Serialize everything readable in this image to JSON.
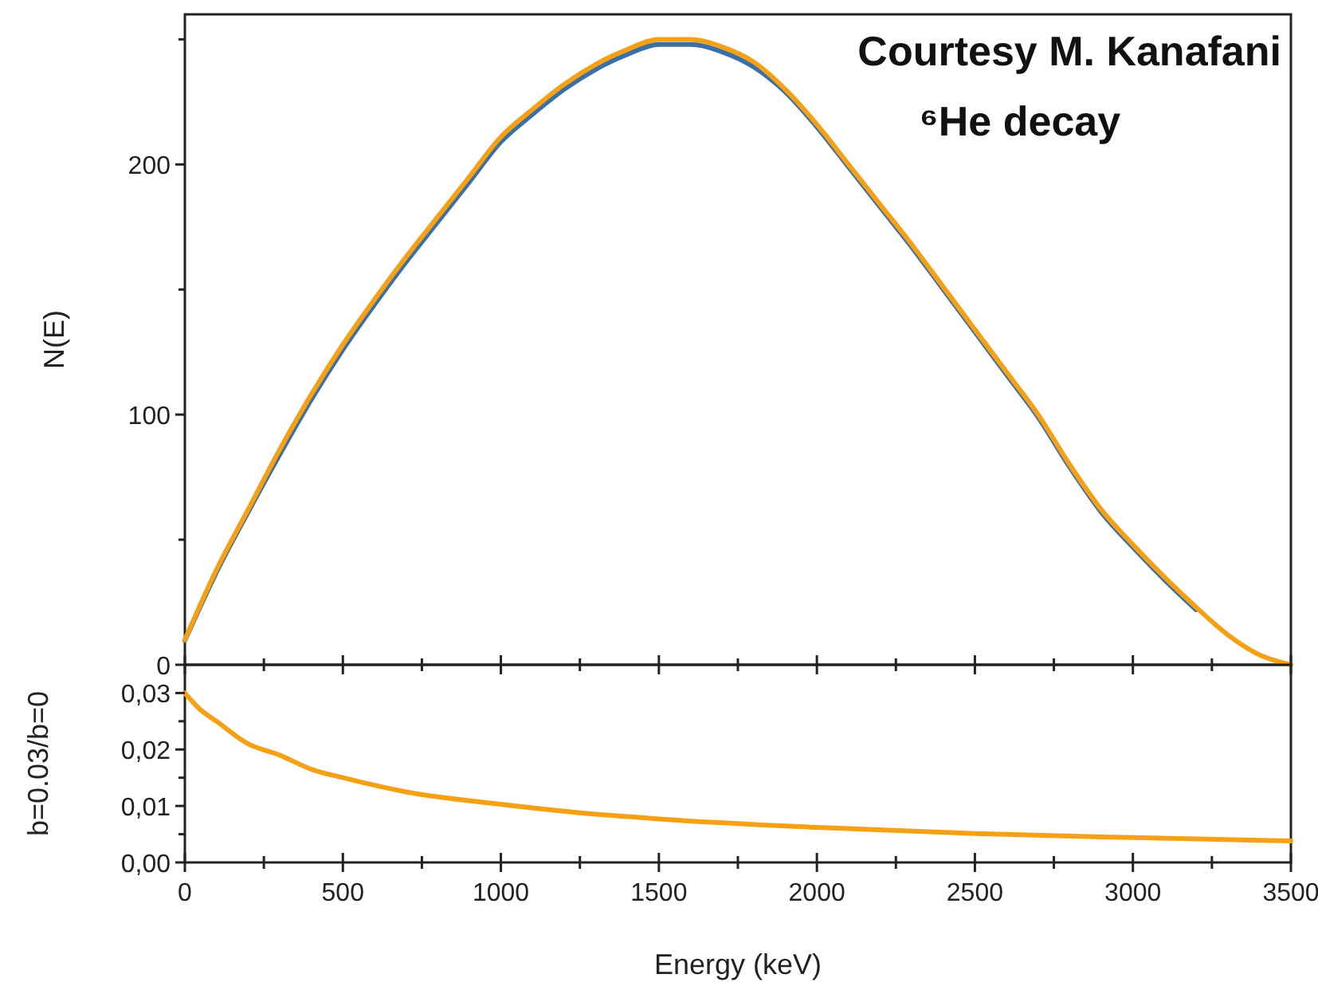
{
  "chart_data": [
    {
      "type": "line",
      "ylabel": "N(E)",
      "annotations": [
        "Courtesy M. Kanafani",
        "⁶He decay"
      ],
      "xlim": [
        0,
        3500
      ],
      "xticks": [
        {
          "value": 0,
          "label": null
        },
        {
          "value": 250,
          "label": null
        },
        {
          "value": 500,
          "label": null
        },
        {
          "value": 750,
          "label": null
        },
        {
          "value": 1000,
          "label": null
        },
        {
          "value": 1250,
          "label": null
        },
        {
          "value": 1500,
          "label": null
        },
        {
          "value": 1750,
          "label": null
        },
        {
          "value": 2000,
          "label": null
        },
        {
          "value": 2250,
          "label": null
        },
        {
          "value": 2500,
          "label": null
        },
        {
          "value": 2750,
          "label": null
        },
        {
          "value": 3000,
          "label": null
        },
        {
          "value": 3250,
          "label": null
        },
        {
          "value": 3500,
          "label": null
        }
      ],
      "ylim": [
        0,
        260
      ],
      "yticks": [
        0,
        {
          "value": 50,
          "label": null
        },
        100,
        {
          "value": 150,
          "label": null
        },
        200,
        {
          "value": 250,
          "label": null
        }
      ],
      "tick_labels": "y",
      "x": [
        0,
        100,
        200,
        300,
        400,
        500,
        600,
        700,
        800,
        900,
        1000,
        1100,
        1200,
        1300,
        1400,
        1500,
        1600,
        1700,
        1800,
        1900,
        2000,
        2100,
        2200,
        2300,
        2400,
        2500,
        2600,
        2700,
        2800,
        2900,
        3000,
        3100,
        3200,
        3300,
        3400,
        3500
      ],
      "series": [
        {
          "color": "#3a6fa8",
          "values": [
            9.7,
            37,
            61,
            84,
            106,
            126,
            144,
            161,
            177,
            193,
            209,
            220,
            230,
            238,
            244,
            248,
            248,
            245,
            239,
            229,
            215,
            199,
            183,
            167,
            150,
            133,
            116,
            99,
            79,
            61,
            47,
            34,
            22,
            null,
            null,
            null
          ]
        },
        {
          "color": "#f5a015",
          "values": [
            10,
            38,
            62,
            86,
            108,
            128,
            146,
            163,
            179,
            195,
            211,
            222,
            232,
            240,
            246,
            250,
            250,
            247,
            241,
            230,
            216,
            200,
            184,
            168,
            151,
            134,
            117,
            100,
            80,
            62,
            48,
            35,
            23,
            12,
            4,
            0
          ]
        }
      ]
    },
    {
      "type": "line",
      "xlabel": "Energy (keV)",
      "ylabel": "b=0.03/b=0",
      "xlim": [
        0,
        3500
      ],
      "xticks": [
        0,
        {
          "value": 250,
          "label": null
        },
        500,
        {
          "value": 750,
          "label": null
        },
        1000,
        {
          "value": 1250,
          "label": null
        },
        1500,
        {
          "value": 1750,
          "label": null
        },
        2000,
        {
          "value": 2250,
          "label": null
        },
        2500,
        {
          "value": 2750,
          "label": null
        },
        3000,
        {
          "value": 3250,
          "label": null
        },
        3500
      ],
      "ylim": [
        0,
        0.035
      ],
      "yticks": [
        {
          "value": 0,
          "label": "0,00"
        },
        {
          "value": 0.005,
          "label": null
        },
        {
          "value": 0.01,
          "label": "0,01"
        },
        {
          "value": 0.015,
          "label": null
        },
        {
          "value": 0.02,
          "label": "0,02"
        },
        {
          "value": 0.025,
          "label": null
        },
        {
          "value": 0.03,
          "label": "0,03"
        }
      ],
      "x": [
        0,
        50,
        100,
        200,
        300,
        400,
        500,
        700,
        1000,
        1250,
        1500,
        2000,
        2500,
        3000,
        3500
      ],
      "series": [
        {
          "color": "#f5a015",
          "values": [
            0.03,
            0.027,
            0.025,
            0.021,
            0.019,
            0.0165,
            0.015,
            0.0125,
            0.0103,
            0.0088,
            0.0077,
            0.0062,
            0.0051,
            0.0044,
            0.0038
          ]
        }
      ]
    }
  ]
}
